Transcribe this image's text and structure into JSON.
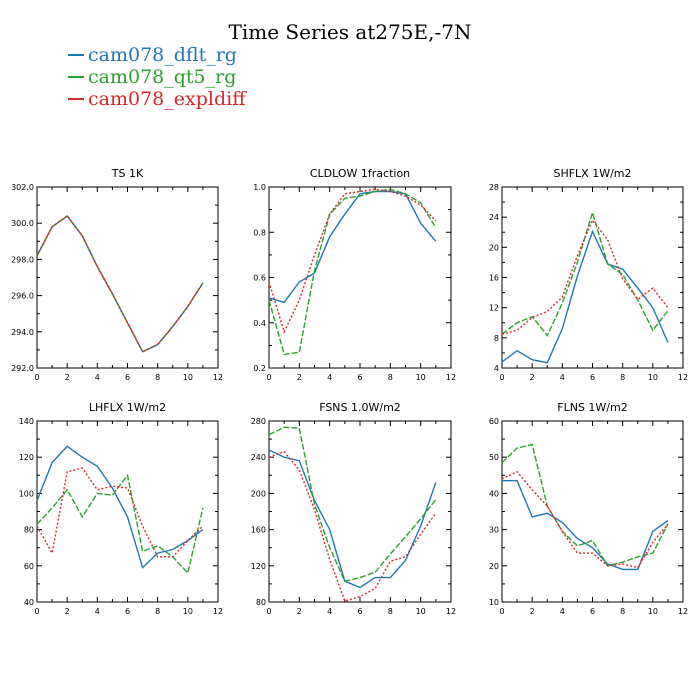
{
  "title": "Time Series at275E,-7N",
  "legend": [
    {
      "name": "cam078_dflt_rg",
      "color": "#1f77b4"
    },
    {
      "name": "cam078_qt5_rg",
      "color": "#2ca02c"
    },
    {
      "name": "cam078_expldiff",
      "color": "#d62728"
    }
  ],
  "chart_data": [
    {
      "type": "line",
      "title": "TS   1K",
      "xlim": [
        0,
        12
      ],
      "ylim": [
        292,
        302
      ],
      "xticks": [
        0,
        2,
        4,
        6,
        8,
        10,
        12
      ],
      "yticks": [
        "292.0",
        "294.0",
        "296.0",
        "298.0",
        "300.0",
        "302.0"
      ],
      "x": [
        0,
        1,
        2,
        3,
        4,
        5,
        6,
        7,
        8,
        9,
        10,
        11
      ],
      "series": [
        {
          "name": "cam078_dflt_rg",
          "color": "#1f77b4",
          "dash": "",
          "values": [
            298.2,
            299.8,
            300.4,
            299.3,
            297.6,
            296.1,
            294.5,
            292.9,
            293.3,
            294.3,
            295.4,
            296.7
          ]
        },
        {
          "name": "cam078_qt5_rg",
          "color": "#2ca02c",
          "dash": "6,2",
          "values": [
            298.2,
            299.8,
            300.4,
            299.3,
            297.6,
            296.1,
            294.5,
            292.9,
            293.3,
            294.3,
            295.4,
            296.7
          ]
        },
        {
          "name": "cam078_expldiff",
          "color": "#d62728",
          "dash": "2,2",
          "values": [
            298.2,
            299.8,
            300.4,
            299.3,
            297.6,
            296.1,
            294.5,
            292.9,
            293.3,
            294.3,
            295.4,
            296.7
          ]
        }
      ]
    },
    {
      "type": "line",
      "title": "CLDLOW   1fraction",
      "xlim": [
        0,
        12
      ],
      "ylim": [
        0.2,
        1.0
      ],
      "xticks": [
        0,
        2,
        4,
        6,
        8,
        10,
        12
      ],
      "yticks": [
        "0.2",
        "0.4",
        "0.6",
        "0.8",
        "1.0"
      ],
      "x": [
        0,
        1,
        2,
        3,
        4,
        5,
        6,
        7,
        8,
        9,
        10,
        11
      ],
      "series": [
        {
          "name": "cam078_dflt_rg",
          "color": "#1f77b4",
          "dash": "",
          "values": [
            0.51,
            0.49,
            0.58,
            0.62,
            0.78,
            0.88,
            0.97,
            0.98,
            0.98,
            0.97,
            0.84,
            0.76
          ]
        },
        {
          "name": "cam078_qt5_rg",
          "color": "#2ca02c",
          "dash": "6,2",
          "values": [
            0.5,
            0.26,
            0.27,
            0.63,
            0.88,
            0.95,
            0.96,
            0.98,
            0.99,
            0.97,
            0.93,
            0.82
          ]
        },
        {
          "name": "cam078_expldiff",
          "color": "#d62728",
          "dash": "2,2",
          "values": [
            0.58,
            0.36,
            0.5,
            0.7,
            0.88,
            0.97,
            0.98,
            0.99,
            0.98,
            0.96,
            0.92,
            0.85
          ]
        }
      ]
    },
    {
      "type": "line",
      "title": "SHFLX   1W/m2",
      "xlim": [
        0,
        12
      ],
      "ylim": [
        4,
        28
      ],
      "xticks": [
        0,
        2,
        4,
        6,
        8,
        10,
        12
      ],
      "yticks": [
        "4",
        "8",
        "12",
        "16",
        "20",
        "24",
        "28"
      ],
      "x": [
        0,
        1,
        2,
        3,
        4,
        5,
        6,
        7,
        8,
        9,
        10,
        11
      ],
      "series": [
        {
          "name": "cam078_dflt_rg",
          "color": "#1f77b4",
          "dash": "",
          "values": [
            4.8,
            6.3,
            5.1,
            4.7,
            9.2,
            16.2,
            22.1,
            17.8,
            17.1,
            14.6,
            12.0,
            7.4
          ]
        },
        {
          "name": "cam078_qt5_rg",
          "color": "#2ca02c",
          "dash": "6,2",
          "values": [
            8.5,
            10.0,
            10.8,
            8.3,
            12.6,
            18.0,
            24.6,
            17.8,
            16.4,
            13.0,
            9.0,
            11.6
          ]
        },
        {
          "name": "cam078_expldiff",
          "color": "#d62728",
          "dash": "2,2",
          "values": [
            8.5,
            9.0,
            10.7,
            11.5,
            13.4,
            18.9,
            23.6,
            21.0,
            15.8,
            13.1,
            14.6,
            12.0
          ]
        }
      ]
    },
    {
      "type": "line",
      "title": "LHFLX   1W/m2",
      "xlim": [
        0,
        12
      ],
      "ylim": [
        40,
        140
      ],
      "xticks": [
        0,
        2,
        4,
        6,
        8,
        10,
        12
      ],
      "yticks": [
        "40",
        "60",
        "80",
        "100",
        "120",
        "140"
      ],
      "x": [
        0,
        1,
        2,
        3,
        4,
        5,
        6,
        7,
        8,
        9,
        10,
        11
      ],
      "series": [
        {
          "name": "cam078_dflt_rg",
          "color": "#1f77b4",
          "dash": "",
          "values": [
            96,
            117,
            126,
            120,
            115,
            103,
            87,
            59,
            67,
            69,
            74,
            80
          ]
        },
        {
          "name": "cam078_qt5_rg",
          "color": "#2ca02c",
          "dash": "6,2",
          "values": [
            83,
            92,
            102,
            87,
            100,
            99,
            110,
            68,
            71,
            65,
            56,
            92
          ]
        },
        {
          "name": "cam078_expldiff",
          "color": "#d62728",
          "dash": "2,2",
          "values": [
            82,
            67,
            112,
            114,
            102,
            104,
            103,
            82,
            65,
            65,
            74,
            82
          ]
        }
      ]
    },
    {
      "type": "line",
      "title": "FSNS   1.0W/m2",
      "xlim": [
        0,
        12
      ],
      "ylim": [
        80,
        280
      ],
      "xticks": [
        0,
        2,
        4,
        6,
        8,
        10,
        12
      ],
      "yticks": [
        "80",
        "120",
        "160",
        "200",
        "240",
        "280"
      ],
      "x": [
        0,
        1,
        2,
        3,
        4,
        5,
        6,
        7,
        8,
        9,
        10,
        11
      ],
      "series": [
        {
          "name": "cam078_dflt_rg",
          "color": "#1f77b4",
          "dash": "",
          "values": [
            248,
            240,
            236,
            192,
            160,
            103,
            96,
            107,
            107,
            126,
            164,
            212
          ]
        },
        {
          "name": "cam078_qt5_rg",
          "color": "#2ca02c",
          "dash": "6,2",
          "values": [
            265,
            273,
            272,
            188,
            140,
            103,
            107,
            113,
            133,
            152,
            172,
            193
          ]
        },
        {
          "name": "cam078_expldiff",
          "color": "#d62728",
          "dash": "2,2",
          "values": [
            240,
            246,
            226,
            182,
            127,
            81,
            86,
            95,
            125,
            130,
            155,
            178
          ]
        }
      ]
    },
    {
      "type": "line",
      "title": "FLNS   1W/m2",
      "xlim": [
        0,
        12
      ],
      "ylim": [
        10,
        60
      ],
      "xticks": [
        0,
        2,
        4,
        6,
        8,
        10,
        12
      ],
      "yticks": [
        "10",
        "20",
        "30",
        "40",
        "50",
        "60"
      ],
      "x": [
        0,
        1,
        2,
        3,
        4,
        5,
        6,
        7,
        8,
        9,
        10,
        11
      ],
      "series": [
        {
          "name": "cam078_dflt_rg",
          "color": "#1f77b4",
          "dash": "",
          "values": [
            43.5,
            43.5,
            33.5,
            34.5,
            32,
            27.5,
            25,
            20.5,
            19,
            19,
            29.5,
            32.5
          ]
        },
        {
          "name": "cam078_qt5_rg",
          "color": "#2ca02c",
          "dash": "6,2",
          "values": [
            48.5,
            52.5,
            53.5,
            36.5,
            29.5,
            25.5,
            27,
            20,
            21,
            22.5,
            23.5,
            31.5
          ]
        },
        {
          "name": "cam078_expldiff",
          "color": "#d62728",
          "dash": "2,2",
          "values": [
            44,
            46,
            41,
            36.5,
            29.5,
            23.5,
            23.5,
            20,
            20.5,
            19.5,
            26.5,
            31.5
          ]
        }
      ]
    }
  ]
}
